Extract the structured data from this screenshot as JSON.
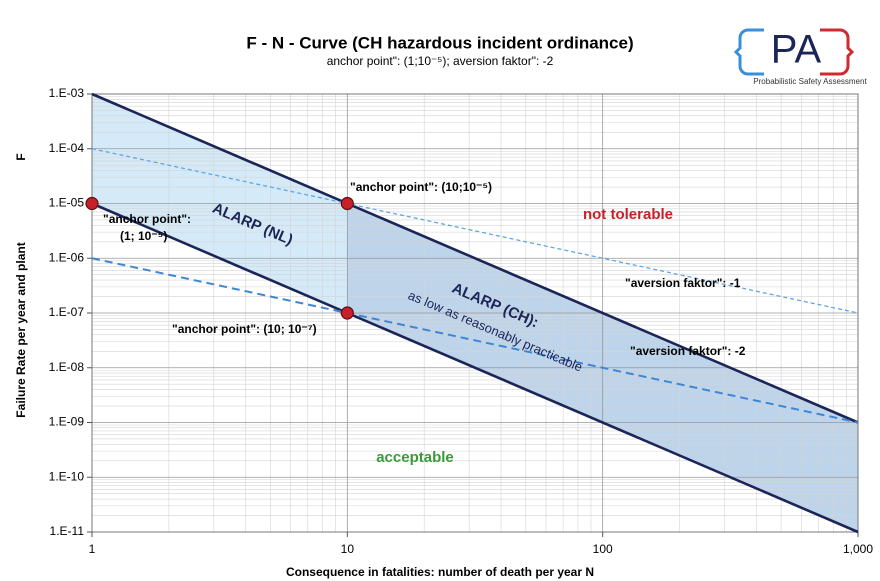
{
  "chart_data": {
    "type": "line",
    "title": "F - N - Curve (CH hazardous incident ordinance)",
    "subtitle": "anchor point\": (1;10⁻⁵); aversion faktor\": -2",
    "x_label": "Consequence in fatalities: number of death per year N",
    "y_label": "Failure Rate per year and plant",
    "y_symbol": "F",
    "logo": {
      "text": "PA",
      "caption": "Probabilistic Safety Assessment"
    },
    "log_x": true,
    "log_y": true,
    "grid": true,
    "minor_grid": true,
    "xlim": [
      1,
      1000
    ],
    "xticks": [
      1,
      10,
      100,
      {
        "value": 1000,
        "label": "1,000"
      }
    ],
    "ylim": [
      1e-11,
      0.001
    ],
    "yticks": [
      {
        "value": 0.001,
        "label": "1.E-03"
      },
      {
        "value": 0.0001,
        "label": "1.E-04"
      },
      {
        "value": 1e-05,
        "label": "1.E-05"
      },
      {
        "value": 1e-06,
        "label": "1.E-06"
      },
      {
        "value": 1e-07,
        "label": "1.E-07"
      },
      {
        "value": 1e-08,
        "label": "1.E-08"
      },
      {
        "value": 1e-09,
        "label": "1.E-09"
      },
      {
        "value": 1e-10,
        "label": "1.E-10"
      },
      {
        "value": 1e-11,
        "label": "1.E-11"
      }
    ],
    "areas": [
      {
        "color": "#cde6f7",
        "x": [
          1,
          10
        ],
        "upper": [
          0.001,
          1e-05
        ],
        "lower": [
          1e-05,
          1e-07
        ]
      },
      {
        "color": "#b3cde8",
        "x": [
          10,
          1000
        ],
        "upper": [
          1e-05,
          1e-09
        ],
        "lower": [
          1e-07,
          1e-11
        ]
      }
    ],
    "series": [
      {
        "color": "#1c2557",
        "style": "solid",
        "x": [
          1,
          1000
        ],
        "values": [
          0.001,
          1e-09
        ]
      },
      {
        "color": "#1c2557",
        "style": "solid",
        "x": [
          1,
          1000
        ],
        "values": [
          1e-05,
          1e-11
        ]
      },
      {
        "color": "#5ea6e6",
        "style": "dashed",
        "x": [
          1,
          1000
        ],
        "values": [
          0.0001,
          1e-07
        ]
      },
      {
        "color": "#3f86d4",
        "style": "dashed",
        "x": [
          1,
          1000
        ],
        "values": [
          1e-06,
          1e-09
        ]
      }
    ],
    "points": {
      "color": "#c8202a",
      "x": [
        1,
        10,
        10
      ],
      "values": [
        1e-05,
        1e-05,
        1e-07
      ]
    },
    "annotations": [
      "ALARP  (NL)",
      "\"anchor point\": (10;10⁻⁵)",
      "\"anchor point\":",
      "(1; 10⁻⁵)",
      "not tolerable",
      "\"aversion faktor\": -1",
      "ALARP  (CH):",
      "as low as reasonably practicable",
      "\"anchor point\": (10; 10⁻⁷)",
      "\"aversion faktor\": -2",
      "acceptable"
    ]
  }
}
